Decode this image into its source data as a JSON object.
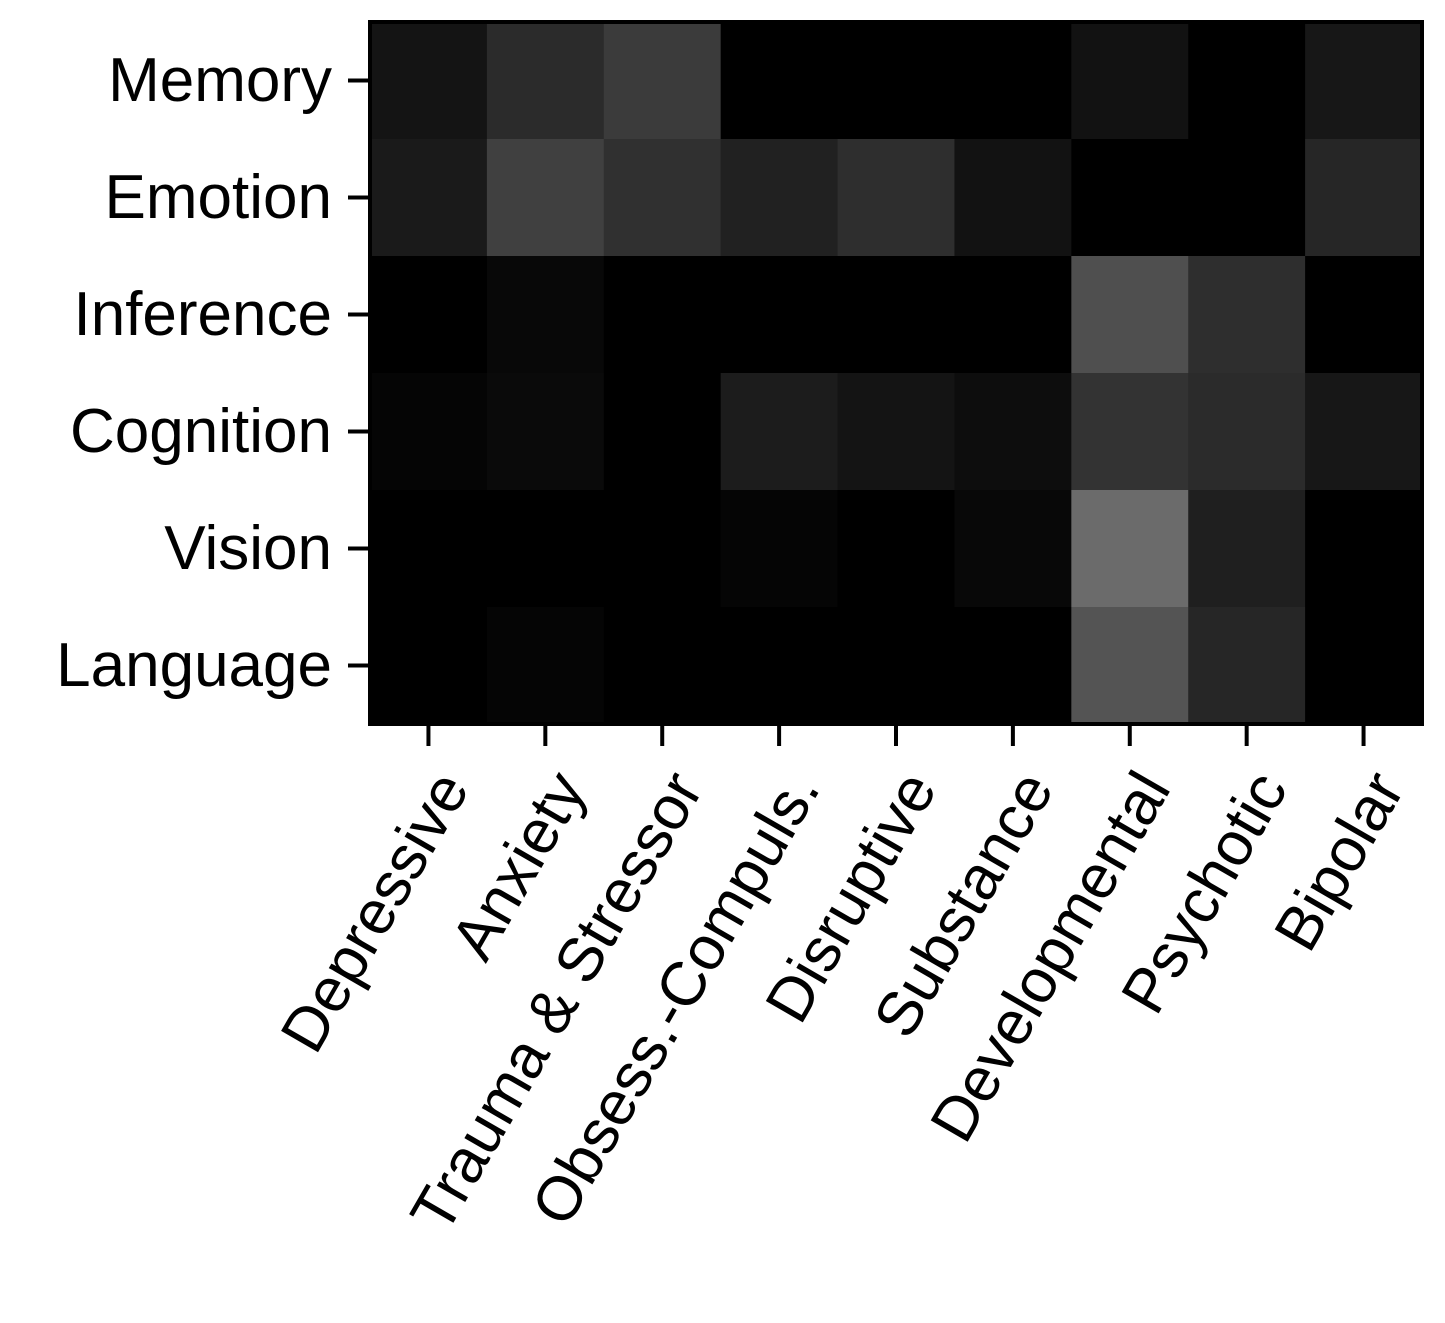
{
  "chart_data": {
    "type": "heatmap",
    "title": "",
    "xlabel": "",
    "ylabel": "",
    "x_categories": [
      "Depressive",
      "Anxiety",
      "Trauma & Stressor",
      "Obsess.-Compuls.",
      "Disruptive",
      "Substance",
      "Developmental",
      "Psychotic",
      "Bipolar"
    ],
    "y_categories": [
      "Memory",
      "Emotion",
      "Inference",
      "Cognition",
      "Vision",
      "Language"
    ],
    "values": [
      [
        0.08,
        0.17,
        0.23,
        0.0,
        0.0,
        0.0,
        0.07,
        0.0,
        0.09
      ],
      [
        0.1,
        0.25,
        0.19,
        0.13,
        0.18,
        0.07,
        0.0,
        0.0,
        0.15
      ],
      [
        0.0,
        0.03,
        0.0,
        0.0,
        0.0,
        0.0,
        0.31,
        0.18,
        0.0
      ],
      [
        0.02,
        0.04,
        0.0,
        0.11,
        0.08,
        0.05,
        0.2,
        0.17,
        0.09
      ],
      [
        0.0,
        0.0,
        0.0,
        0.02,
        0.0,
        0.03,
        0.42,
        0.12,
        0.0
      ],
      [
        0.0,
        0.02,
        0.0,
        0.0,
        0.0,
        0.0,
        0.33,
        0.15,
        0.0
      ]
    ],
    "color_range": [
      0,
      1
    ],
    "colormap": "gray",
    "grid": false,
    "legend": "none"
  }
}
